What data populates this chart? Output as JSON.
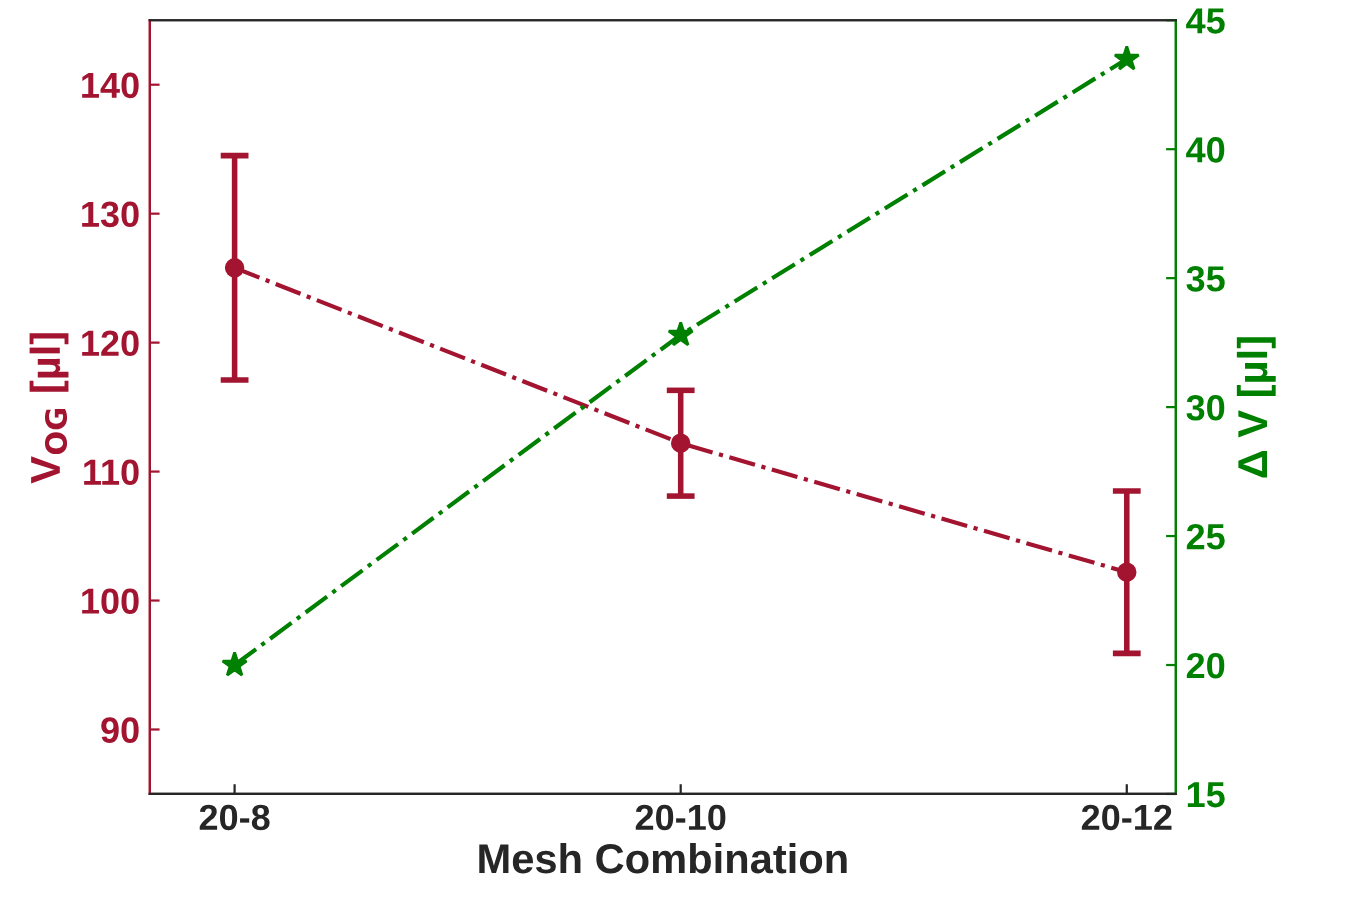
{
  "chart_data": {
    "type": "line",
    "xlabel": "Mesh Combination",
    "ylabel": "V$_{OG}$ [µl]",
    "y2label": "Δ V [µl]",
    "categories": [
      "20-8",
      "20-10",
      "20-12"
    ],
    "series": [
      {
        "color": "#a2142f",
        "values": [
          125.8,
          112.2,
          102.2
        ],
        "errors": [
          8.7,
          4.1,
          6.3
        ],
        "marker": "circle",
        "line_style": "dashdot"
      },
      {
        "color": "#008000",
        "values": [
          20.0,
          32.8,
          43.5
        ],
        "axis": "y2",
        "marker": "star",
        "line_style": "dashdot"
      }
    ],
    "ylim": [
      85,
      145
    ],
    "yticks": [
      90,
      100,
      110,
      120,
      130,
      140
    ],
    "y2lim": [
      15,
      45
    ],
    "y2ticks": [
      15,
      20,
      25,
      30,
      35,
      40,
      45
    ],
    "grid": false
  }
}
